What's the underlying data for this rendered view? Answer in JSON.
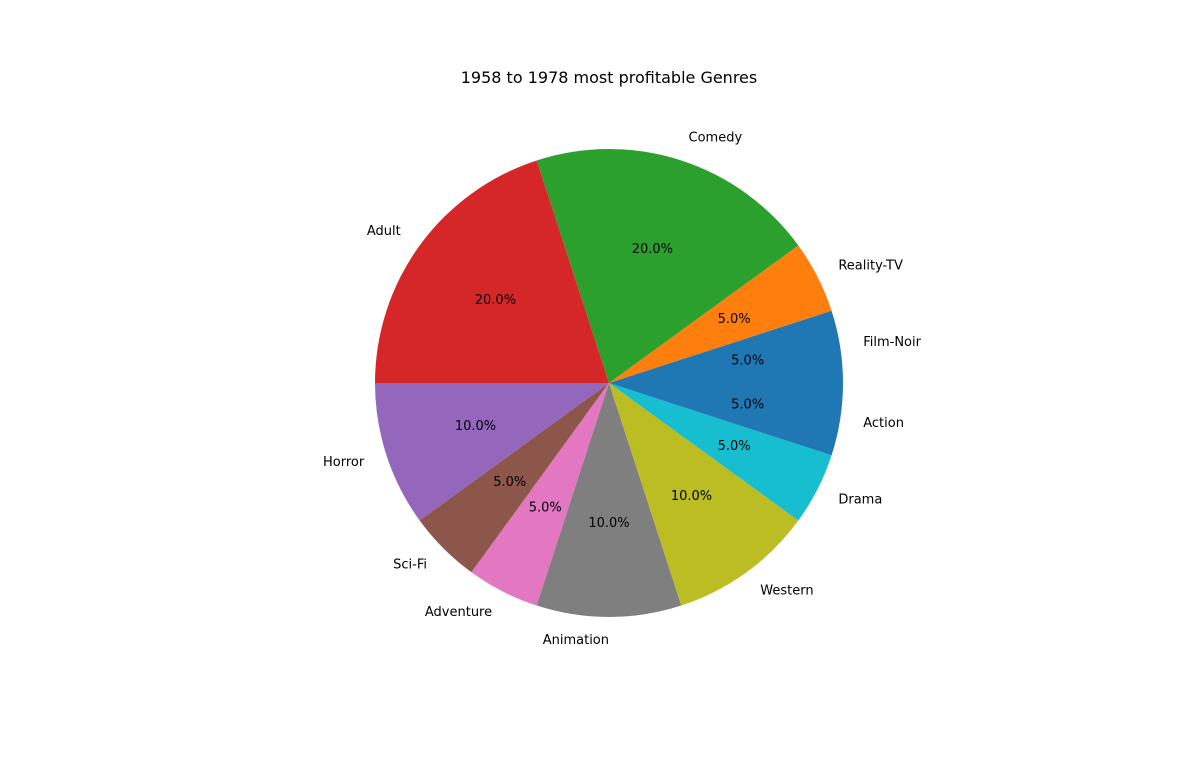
{
  "chart_data": {
    "type": "pie",
    "title": "1958 to 1978 most profitable Genres",
    "start_angle_deg": 0,
    "direction": "counterclockwise",
    "slices": [
      {
        "label": "Film-Noir",
        "value": 5.0,
        "pct_label": "5.0%",
        "color": "#1f77b4"
      },
      {
        "label": "Reality-TV",
        "value": 5.0,
        "pct_label": "5.0%",
        "color": "#ff7f0e"
      },
      {
        "label": "Comedy",
        "value": 20.0,
        "pct_label": "20.0%",
        "color": "#2ca02c"
      },
      {
        "label": "Adult",
        "value": 20.0,
        "pct_label": "20.0%",
        "color": "#d62728"
      },
      {
        "label": "Horror",
        "value": 10.0,
        "pct_label": "10.0%",
        "color": "#9467bd"
      },
      {
        "label": "Sci-Fi",
        "value": 5.0,
        "pct_label": "5.0%",
        "color": "#8c564b"
      },
      {
        "label": "Adventure",
        "value": 5.0,
        "pct_label": "5.0%",
        "color": "#e377c2"
      },
      {
        "label": "Animation",
        "value": 10.0,
        "pct_label": "10.0%",
        "color": "#7f7f7f"
      },
      {
        "label": "Western",
        "value": 10.0,
        "pct_label": "10.0%",
        "color": "#bcbd22"
      },
      {
        "label": "Drama",
        "value": 5.0,
        "pct_label": "5.0%",
        "color": "#17becf"
      },
      {
        "label": "Action",
        "value": 5.0,
        "pct_label": "5.0%",
        "color": "#1f77b4"
      }
    ]
  }
}
